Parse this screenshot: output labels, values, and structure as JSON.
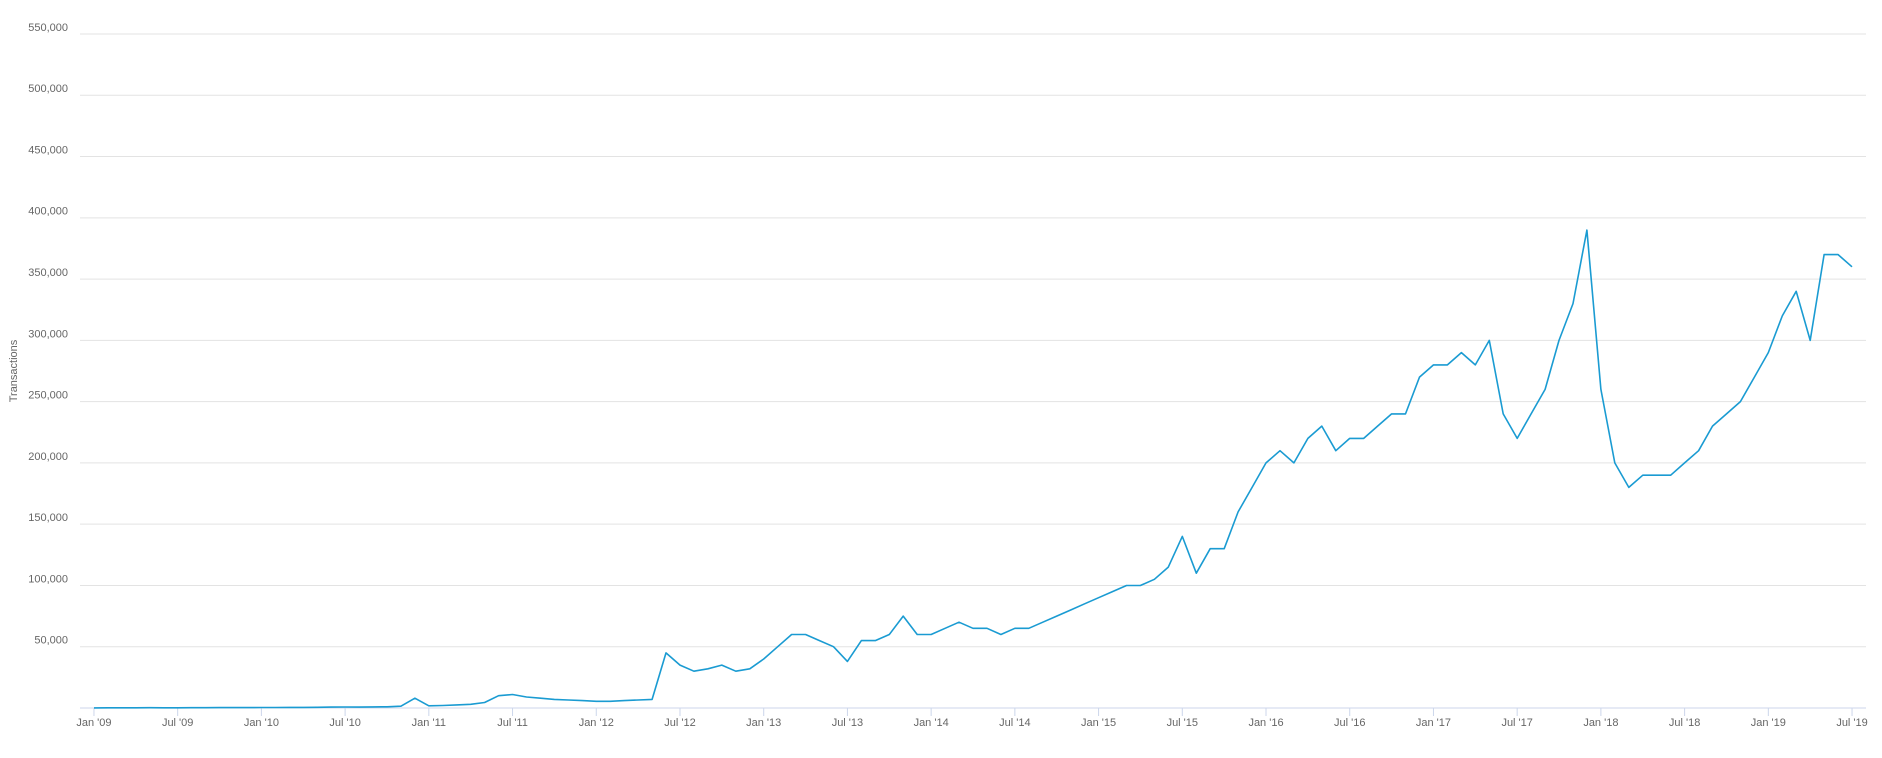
{
  "chart_data": {
    "type": "line",
    "ylabel": "Transactions",
    "x": [
      "2009-01",
      "2009-02",
      "2009-03",
      "2009-04",
      "2009-05",
      "2009-06",
      "2009-07",
      "2009-08",
      "2009-09",
      "2009-10",
      "2009-11",
      "2009-12",
      "2010-01",
      "2010-02",
      "2010-03",
      "2010-04",
      "2010-05",
      "2010-06",
      "2010-07",
      "2010-08",
      "2010-09",
      "2010-10",
      "2010-11",
      "2010-12",
      "2011-01",
      "2011-02",
      "2011-03",
      "2011-04",
      "2011-05",
      "2011-06",
      "2011-07",
      "2011-08",
      "2011-09",
      "2011-10",
      "2011-11",
      "2011-12",
      "2012-01",
      "2012-02",
      "2012-03",
      "2012-04",
      "2012-05",
      "2012-06",
      "2012-07",
      "2012-08",
      "2012-09",
      "2012-10",
      "2012-11",
      "2012-12",
      "2013-01",
      "2013-02",
      "2013-03",
      "2013-04",
      "2013-05",
      "2013-06",
      "2013-07",
      "2013-08",
      "2013-09",
      "2013-10",
      "2013-11",
      "2013-12",
      "2014-01",
      "2014-02",
      "2014-03",
      "2014-04",
      "2014-05",
      "2014-06",
      "2014-07",
      "2014-08",
      "2014-09",
      "2014-10",
      "2014-11",
      "2014-12",
      "2015-01",
      "2015-02",
      "2015-03",
      "2015-04",
      "2015-05",
      "2015-06",
      "2015-07",
      "2015-08",
      "2015-09",
      "2015-10",
      "2015-11",
      "2015-12",
      "2016-01",
      "2016-02",
      "2016-03",
      "2016-04",
      "2016-05",
      "2016-06",
      "2016-07",
      "2016-08",
      "2016-09",
      "2016-10",
      "2016-11",
      "2016-12",
      "2017-01",
      "2017-02",
      "2017-03",
      "2017-04",
      "2017-05",
      "2017-06",
      "2017-07",
      "2017-08",
      "2017-09",
      "2017-10",
      "2017-11",
      "2017-12",
      "2018-01",
      "2018-02",
      "2018-03",
      "2018-04",
      "2018-05",
      "2018-06",
      "2018-07",
      "2018-08",
      "2018-09",
      "2018-10",
      "2018-11",
      "2018-12",
      "2019-01",
      "2019-02",
      "2019-03",
      "2019-04",
      "2019-05",
      "2019-06",
      "2019-07"
    ],
    "series": [
      {
        "name": "Transactions",
        "color": "#1a9bd2",
        "values": [
          100,
          150,
          150,
          200,
          250,
          200,
          200,
          250,
          250,
          300,
          300,
          350,
          400,
          400,
          500,
          500,
          600,
          700,
          800,
          700,
          900,
          1000,
          1500,
          8000,
          1800,
          2000,
          2500,
          3000,
          4500,
          10000,
          11000,
          9000,
          8000,
          7000,
          6500,
          6000,
          5500,
          5500,
          6000,
          6500,
          7000,
          45000,
          35000,
          30000,
          32000,
          35000,
          30000,
          32000,
          40000,
          50000,
          60000,
          60000,
          55000,
          50000,
          38000,
          55000,
          55000,
          60000,
          75000,
          60000,
          60000,
          65000,
          70000,
          65000,
          65000,
          60000,
          65000,
          65000,
          70000,
          75000,
          80000,
          85000,
          90000,
          95000,
          100000,
          100000,
          105000,
          115000,
          140000,
          110000,
          130000,
          130000,
          160000,
          180000,
          200000,
          210000,
          200000,
          220000,
          230000,
          210000,
          220000,
          220000,
          230000,
          240000,
          240000,
          270000,
          280000,
          280000,
          290000,
          280000,
          300000,
          240000,
          220000,
          240000,
          260000,
          300000,
          330000,
          390000,
          260000,
          200000,
          180000,
          190000,
          190000,
          190000,
          200000,
          210000,
          230000,
          240000,
          250000,
          270000,
          290000,
          320000,
          340000,
          300000,
          370000,
          370000,
          360000
        ]
      }
    ],
    "xlim": [
      "2008-12",
      "2019-08"
    ],
    "xticks": [
      {
        "value": "2009-01",
        "label": "Jan '09"
      },
      {
        "value": "2009-07",
        "label": "Jul '09"
      },
      {
        "value": "2010-01",
        "label": "Jan '10"
      },
      {
        "value": "2010-07",
        "label": "Jul '10"
      },
      {
        "value": "2011-01",
        "label": "Jan '11"
      },
      {
        "value": "2011-07",
        "label": "Jul '11"
      },
      {
        "value": "2012-01",
        "label": "Jan '12"
      },
      {
        "value": "2012-07",
        "label": "Jul '12"
      },
      {
        "value": "2013-01",
        "label": "Jan '13"
      },
      {
        "value": "2013-07",
        "label": "Jul '13"
      },
      {
        "value": "2014-01",
        "label": "Jan '14"
      },
      {
        "value": "2014-07",
        "label": "Jul '14"
      },
      {
        "value": "2015-01",
        "label": "Jan '15"
      },
      {
        "value": "2015-07",
        "label": "Jul '15"
      },
      {
        "value": "2016-01",
        "label": "Jan '16"
      },
      {
        "value": "2016-07",
        "label": "Jul '16"
      },
      {
        "value": "2017-01",
        "label": "Jan '17"
      },
      {
        "value": "2017-07",
        "label": "Jul '17"
      },
      {
        "value": "2018-01",
        "label": "Jan '18"
      },
      {
        "value": "2018-07",
        "label": "Jul '18"
      },
      {
        "value": "2019-01",
        "label": "Jan '19"
      },
      {
        "value": "2019-07",
        "label": "Jul '19"
      }
    ],
    "ylim": [
      0,
      550000
    ],
    "yticks": [
      {
        "value": 50000,
        "label": "50,000"
      },
      {
        "value": 100000,
        "label": "100,000"
      },
      {
        "value": 150000,
        "label": "150,000"
      },
      {
        "value": 200000,
        "label": "200,000"
      },
      {
        "value": 250000,
        "label": "250,000"
      },
      {
        "value": 300000,
        "label": "300,000"
      },
      {
        "value": 350000,
        "label": "350,000"
      },
      {
        "value": 400000,
        "label": "400,000"
      },
      {
        "value": 450000,
        "label": "450,000"
      },
      {
        "value": 500000,
        "label": "500,000"
      },
      {
        "value": 550000,
        "label": "550,000"
      }
    ],
    "grid": true
  }
}
